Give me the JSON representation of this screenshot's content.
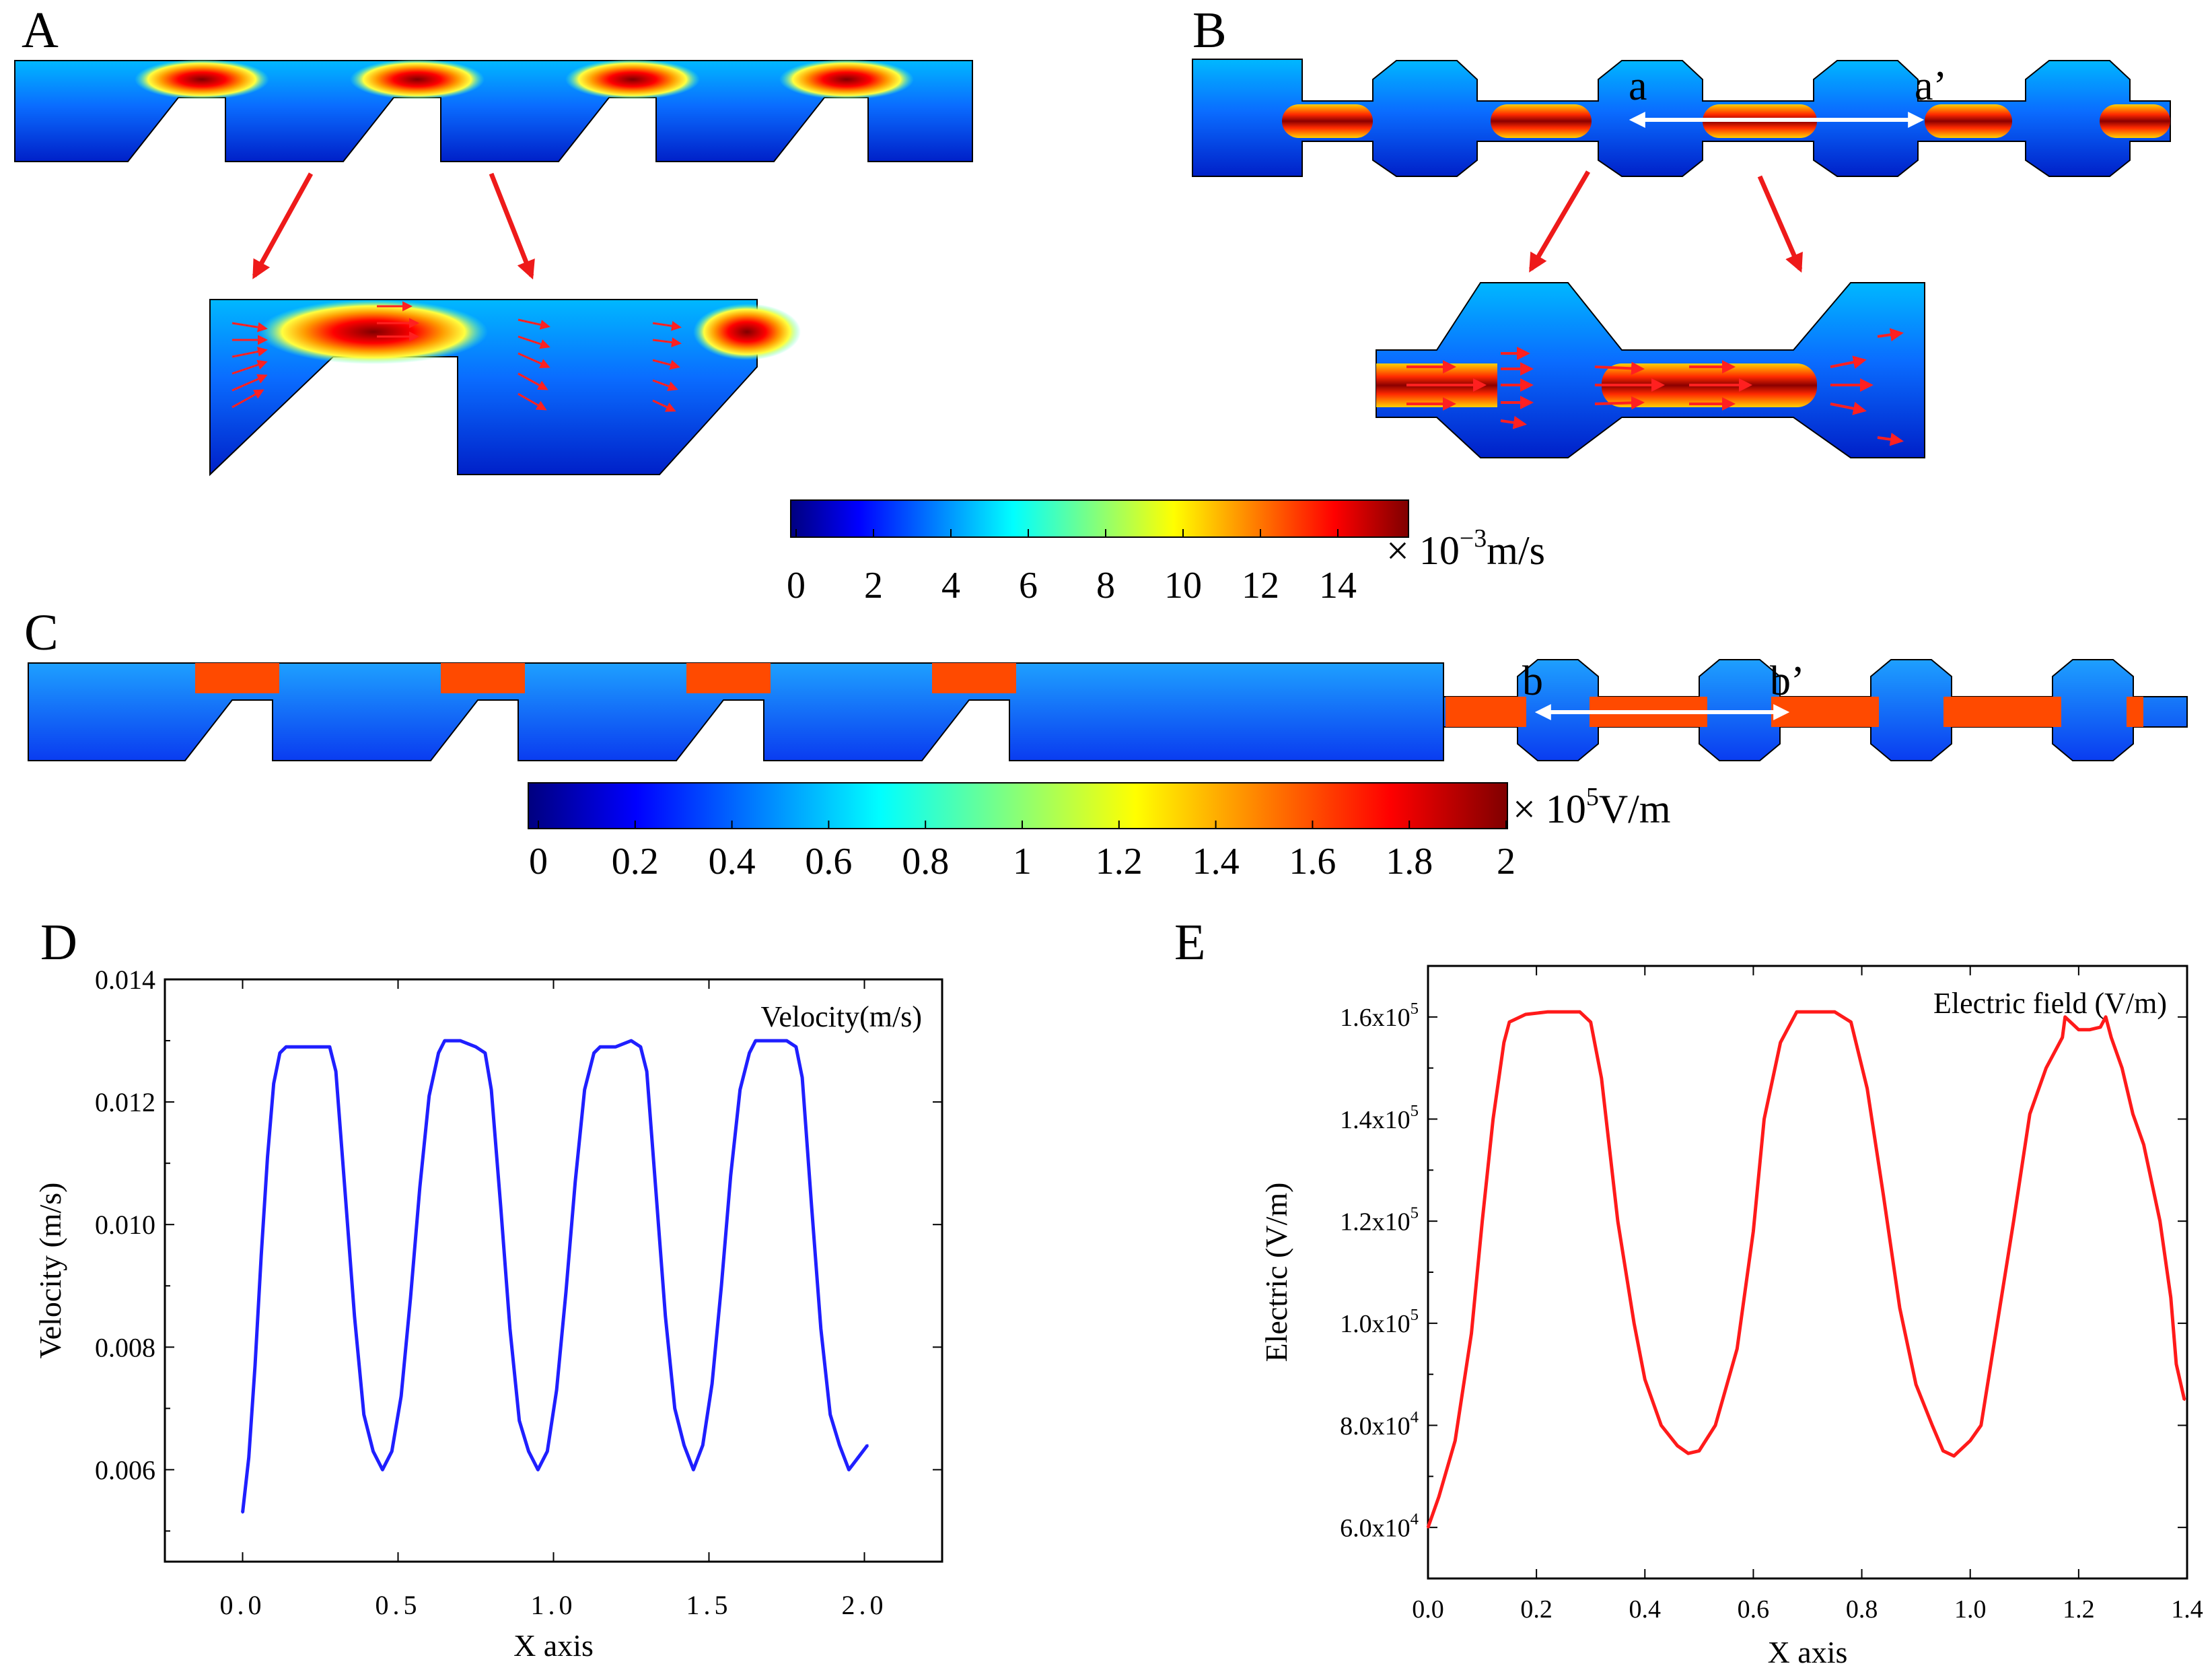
{
  "panels": {
    "A": {
      "letter": "A"
    },
    "B": {
      "letter": "B",
      "marker_start": "a",
      "marker_end": "a’"
    },
    "C": {
      "letter": "C",
      "marker_start": "b",
      "marker_end": "b’"
    },
    "D": {
      "letter": "D"
    },
    "E": {
      "letter": "E"
    }
  },
  "colorbars": {
    "velocity": {
      "unit_prefix": "× 10",
      "unit_exp": "−3",
      "unit_suffix": "m/s",
      "ticks": [
        "0",
        "2",
        "4",
        "6",
        "8",
        "10",
        "12",
        "14"
      ]
    },
    "electric": {
      "unit_prefix": "× 10",
      "unit_exp": "5",
      "unit_suffix": "V/m",
      "ticks": [
        "0",
        "0.2",
        "0.4",
        "0.6",
        "0.8",
        "1",
        "1.2",
        "1.4",
        "1.6",
        "1.8",
        "2"
      ]
    }
  },
  "colors": {
    "jet": [
      "#00007f",
      "#0000ff",
      "#007fff",
      "#00ffff",
      "#7fff7f",
      "#ffff00",
      "#ff7f00",
      "#ff0000",
      "#7f0000"
    ],
    "velocity_line": "#1f1fff",
    "electric_line": "#ff1a1a",
    "arrow": "#ff2020"
  },
  "chart_data": [
    {
      "panel": "D",
      "type": "line",
      "title": "",
      "legend_label": "Velocity(m/s)",
      "xlabel": "X axis",
      "ylabel": "Velocity (m/s)",
      "xlim": [
        -0.25,
        2.25
      ],
      "ylim": [
        0.0045,
        0.014
      ],
      "xticks": [
        0.0,
        0.5,
        1.0,
        1.5,
        2.0
      ],
      "xtick_labels": [
        "0.0",
        "0.5",
        "1.0",
        "1.5",
        "2.0"
      ],
      "yticks": [
        0.006,
        0.008,
        0.01,
        0.012,
        0.014
      ],
      "ytick_labels": [
        "0.006",
        "0.008",
        "0.010",
        "0.012",
        "0.014"
      ],
      "series": [
        {
          "name": "Velocity(m/s)",
          "x": [
            0.0,
            0.02,
            0.04,
            0.06,
            0.08,
            0.1,
            0.12,
            0.14,
            0.16,
            0.2,
            0.25,
            0.28,
            0.3,
            0.33,
            0.36,
            0.39,
            0.42,
            0.45,
            0.48,
            0.51,
            0.54,
            0.57,
            0.6,
            0.63,
            0.65,
            0.7,
            0.75,
            0.78,
            0.8,
            0.83,
            0.86,
            0.89,
            0.92,
            0.95,
            0.98,
            1.01,
            1.04,
            1.07,
            1.1,
            1.13,
            1.15,
            1.2,
            1.25,
            1.28,
            1.3,
            1.33,
            1.36,
            1.39,
            1.42,
            1.45,
            1.48,
            1.51,
            1.54,
            1.57,
            1.6,
            1.63,
            1.65,
            1.7,
            1.75,
            1.78,
            1.8,
            1.83,
            1.86,
            1.89,
            1.92,
            1.95,
            1.98,
            2.01
          ],
          "y": [
            0.0053,
            0.0062,
            0.0077,
            0.0095,
            0.0111,
            0.0123,
            0.0128,
            0.0129,
            0.0129,
            0.0129,
            0.0129,
            0.0129,
            0.0125,
            0.0105,
            0.0085,
            0.0069,
            0.0063,
            0.006,
            0.0063,
            0.0072,
            0.0088,
            0.0106,
            0.0121,
            0.0128,
            0.013,
            0.013,
            0.0129,
            0.0128,
            0.0122,
            0.0103,
            0.0083,
            0.0068,
            0.0063,
            0.006,
            0.0063,
            0.0073,
            0.0089,
            0.0107,
            0.0122,
            0.0128,
            0.0129,
            0.0129,
            0.013,
            0.0129,
            0.0125,
            0.0105,
            0.0085,
            0.007,
            0.0064,
            0.006,
            0.0064,
            0.0074,
            0.009,
            0.0108,
            0.0122,
            0.0128,
            0.013,
            0.013,
            0.013,
            0.0129,
            0.0124,
            0.0103,
            0.0083,
            0.0069,
            0.0064,
            0.006,
            0.0062,
            0.0064
          ]
        }
      ]
    },
    {
      "panel": "E",
      "type": "line",
      "title": "",
      "legend_label": "Electric field (V/m)",
      "xlabel": "X axis",
      "ylabel": "Electric (V/m)",
      "xlim": [
        0.0,
        1.4
      ],
      "ylim": [
        50000,
        170000
      ],
      "xticks": [
        0.0,
        0.2,
        0.4,
        0.6,
        0.8,
        1.0,
        1.2,
        1.4
      ],
      "xtick_labels": [
        "0.0",
        "0.2",
        "0.4",
        "0.6",
        "0.8",
        "1.0",
        "1.2",
        "1.4"
      ],
      "yticks": [
        60000,
        80000,
        100000,
        120000,
        140000,
        160000
      ],
      "ytick_labels": [
        {
          "mant": "6.0x10",
          "exp": "4"
        },
        {
          "mant": "8.0x10",
          "exp": "4"
        },
        {
          "mant": "1.0x10",
          "exp": "5"
        },
        {
          "mant": "1.2x10",
          "exp": "5"
        },
        {
          "mant": "1.4x10",
          "exp": "5"
        },
        {
          "mant": "1.6x10",
          "exp": "5"
        }
      ],
      "series": [
        {
          "name": "Electric field (V/m)",
          "x": [
            0.0,
            0.02,
            0.05,
            0.08,
            0.1,
            0.12,
            0.14,
            0.15,
            0.18,
            0.22,
            0.25,
            0.28,
            0.3,
            0.32,
            0.35,
            0.38,
            0.4,
            0.43,
            0.46,
            0.48,
            0.5,
            0.53,
            0.57,
            0.6,
            0.62,
            0.65,
            0.68,
            0.72,
            0.75,
            0.78,
            0.81,
            0.84,
            0.87,
            0.9,
            0.93,
            0.95,
            0.97,
            1.0,
            1.02,
            1.05,
            1.08,
            1.11,
            1.14,
            1.17,
            1.175,
            1.2,
            1.22,
            1.24,
            1.25,
            1.26,
            1.28,
            1.3,
            1.32,
            1.35,
            1.37,
            1.38,
            1.395
          ],
          "y": [
            60000,
            66000,
            77000,
            98000,
            120000,
            140000,
            155000,
            159000,
            160500,
            161000,
            161000,
            161000,
            159000,
            148000,
            120000,
            100000,
            89000,
            80000,
            76000,
            74500,
            75000,
            80000,
            95000,
            118000,
            140000,
            155000,
            161000,
            161000,
            161000,
            159000,
            146000,
            125000,
            103000,
            88000,
            80000,
            75000,
            74000,
            77000,
            80000,
            100000,
            120000,
            141000,
            150000,
            156000,
            160000,
            157500,
            157500,
            158000,
            160000,
            156000,
            150000,
            141000,
            135000,
            120000,
            105000,
            92000,
            85000
          ]
        }
      ]
    }
  ]
}
